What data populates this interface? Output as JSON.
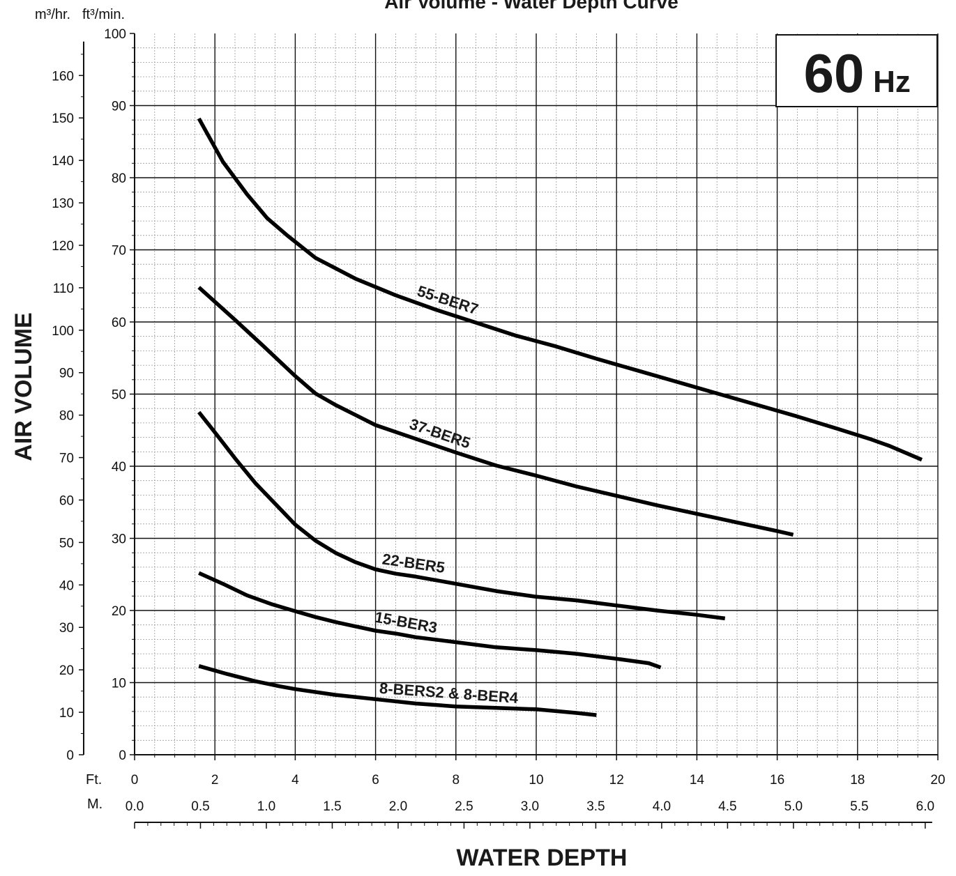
{
  "chart_data": {
    "type": "line",
    "title": "Air Volume - Water Depth Curve",
    "badge": {
      "number": "60",
      "unit": "Hz"
    },
    "ylabel": "AIR VOLUME",
    "xlabel": "WATER DEPTH",
    "y_units": {
      "secondary": "m³/hr.",
      "primary": "ft³/min."
    },
    "x_units": {
      "primary": "Ft.",
      "secondary": "M."
    },
    "xlim_ft": [
      0,
      20
    ],
    "ylim_cfm": [
      0,
      100
    ],
    "grid": true,
    "ft_ticks": [
      "0",
      "2",
      "4",
      "6",
      "8",
      "10",
      "12",
      "14",
      "16",
      "18",
      "20"
    ],
    "m_ticks": [
      "0.0",
      "0.5",
      "1.0",
      "1.5",
      "2.0",
      "2.5",
      "3.0",
      "3.5",
      "4.0",
      "4.5",
      "5.0",
      "5.5",
      "6.0"
    ],
    "cfm_ticks": [
      "0",
      "10",
      "20",
      "30",
      "40",
      "50",
      "60",
      "70",
      "80",
      "90",
      "100"
    ],
    "m3h_ticks": [
      "0",
      "10",
      "20",
      "30",
      "40",
      "50",
      "60",
      "70",
      "80",
      "90",
      "100",
      "110",
      "120",
      "130",
      "140",
      "150",
      "160"
    ],
    "series": [
      {
        "name": "55-BER7",
        "x": [
          1.6,
          2.2,
          2.8,
          3.3,
          3.8,
          4.5,
          5.5,
          6.5,
          7.5,
          8.5,
          9.5,
          10.5,
          11.5,
          12.5,
          13.5,
          14.5,
          15.5,
          16.5,
          17.5,
          18.3,
          18.8,
          19.6
        ],
        "y": [
          88.2,
          82.2,
          77.7,
          74.4,
          72.0,
          68.9,
          66.0,
          63.7,
          61.7,
          59.9,
          58.1,
          56.6,
          54.9,
          53.3,
          51.7,
          50.1,
          48.5,
          46.9,
          45.2,
          43.8,
          42.8,
          40.9
        ]
      },
      {
        "name": "37-BER5",
        "x": [
          1.6,
          2.5,
          3.2,
          4.0,
          4.5,
          5.0,
          6.0,
          7.0,
          8.0,
          9.0,
          10.0,
          11.0,
          12.0,
          13.0,
          14.0,
          15.0,
          16.0,
          16.4
        ],
        "y": [
          64.8,
          60.3,
          56.7,
          52.5,
          50.1,
          48.5,
          45.7,
          43.8,
          41.9,
          40.1,
          38.7,
          37.2,
          35.9,
          34.6,
          33.4,
          32.2,
          31.0,
          30.5
        ]
      },
      {
        "name": "22-BER5",
        "x": [
          1.6,
          2.0,
          2.5,
          3.0,
          3.5,
          4.0,
          4.5,
          5.0,
          5.5,
          6.0,
          6.5,
          7.0,
          8.0,
          9.0,
          10.0,
          11.0,
          12.0,
          13.0,
          14.0,
          14.7
        ],
        "y": [
          47.5,
          44.7,
          41.1,
          37.7,
          34.8,
          31.9,
          29.7,
          28.0,
          26.7,
          25.7,
          25.1,
          24.7,
          23.7,
          22.7,
          21.9,
          21.4,
          20.7,
          20.0,
          19.4,
          18.9
        ]
      },
      {
        "name": "15-BER3",
        "x": [
          1.6,
          2.2,
          2.8,
          3.4,
          4.0,
          4.5,
          5.0,
          5.5,
          6.0,
          6.5,
          7.0,
          8.0,
          9.0,
          10.0,
          11.0,
          12.0,
          12.8,
          13.1
        ],
        "y": [
          25.2,
          23.7,
          22.1,
          20.9,
          19.9,
          19.1,
          18.4,
          17.8,
          17.2,
          16.8,
          16.3,
          15.6,
          14.9,
          14.5,
          14.0,
          13.3,
          12.7,
          12.1
        ]
      },
      {
        "name": "8-BERS2 & 8-BER4",
        "x": [
          1.6,
          2.3,
          3.0,
          3.6,
          4.0,
          5.0,
          6.0,
          7.0,
          8.0,
          9.0,
          10.0,
          11.0,
          11.5
        ],
        "y": [
          12.3,
          11.2,
          10.2,
          9.5,
          9.1,
          8.3,
          7.7,
          7.1,
          6.7,
          6.5,
          6.3,
          5.8,
          5.5
        ]
      }
    ],
    "annotations": [
      "55-BER7",
      "37-BER5",
      "22-BER5",
      "15-BER3",
      "8-BERS2 & 8-BER4"
    ]
  }
}
